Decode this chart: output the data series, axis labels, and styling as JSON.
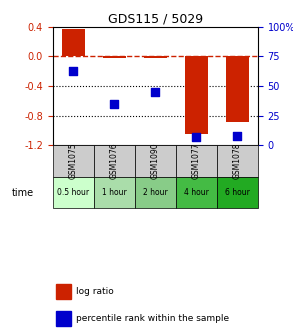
{
  "title": "GDS115 / 5029",
  "samples": [
    "GSM1075",
    "GSM1076",
    "GSM1090",
    "GSM1077",
    "GSM1078"
  ],
  "time_labels": [
    "0.5 hour",
    "1 hour",
    "2 hour",
    "4 hour",
    "6 hour"
  ],
  "time_colors": [
    "#ccffcc",
    "#aaddaa",
    "#88cc88",
    "#44bb44",
    "#22aa22"
  ],
  "log_ratios": [
    0.37,
    -0.02,
    -0.02,
    -1.05,
    -0.88
  ],
  "percentile_ranks": [
    63,
    35,
    45,
    7,
    8
  ],
  "bar_color": "#cc2200",
  "dot_color": "#0000cc",
  "ylim_left": [
    -1.2,
    0.4
  ],
  "ylim_right": [
    0,
    100
  ],
  "yticks_left": [
    0.4,
    0.0,
    -0.4,
    -0.8,
    -1.2
  ],
  "yticks_right": [
    100,
    75,
    50,
    25,
    0
  ],
  "hline_y": 0.0,
  "dotted_lines": [
    -0.4,
    -0.8
  ],
  "background_color": "#ffffff"
}
